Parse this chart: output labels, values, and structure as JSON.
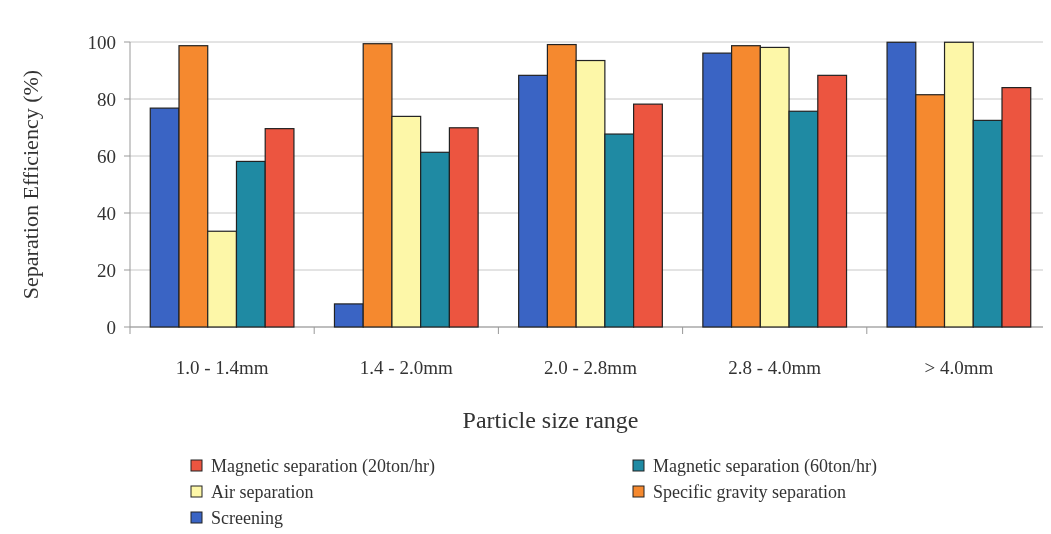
{
  "chart_data": {
    "type": "bar",
    "xlabel": "Particle size range",
    "ylabel": "Separation Efficiency (%)",
    "categories": [
      "1.0 - 1.4mm",
      "1.4 - 2.0mm",
      "2.0 - 2.8mm",
      "2.8 - 4.0mm",
      "> 4.0mm"
    ],
    "series": [
      {
        "name": "Screening",
        "color": "#3a64c4",
        "values": [
          76.8,
          8.1,
          88.3,
          96.1,
          99.9
        ]
      },
      {
        "name": "Specific gravity separation",
        "color": "#f5892f",
        "values": [
          98.7,
          99.4,
          99.1,
          98.7,
          81.5
        ]
      },
      {
        "name": "Air separation",
        "color": "#fdf7a8",
        "values": [
          33.6,
          73.9,
          93.5,
          98.1,
          99.9
        ]
      },
      {
        "name": "Magnetic separation (60ton/hr)",
        "color": "#1f8aa3",
        "values": [
          58.1,
          61.3,
          67.7,
          75.7,
          72.5
        ]
      },
      {
        "name": "Magnetic separation (20ton/hr)",
        "color": "#ec5540",
        "values": [
          69.6,
          69.9,
          78.2,
          88.3,
          84.0
        ]
      }
    ],
    "ylim": [
      0,
      100
    ],
    "yticks": [
      0,
      20,
      40,
      60,
      80,
      100
    ],
    "grid": "y",
    "legend": "bottom"
  }
}
